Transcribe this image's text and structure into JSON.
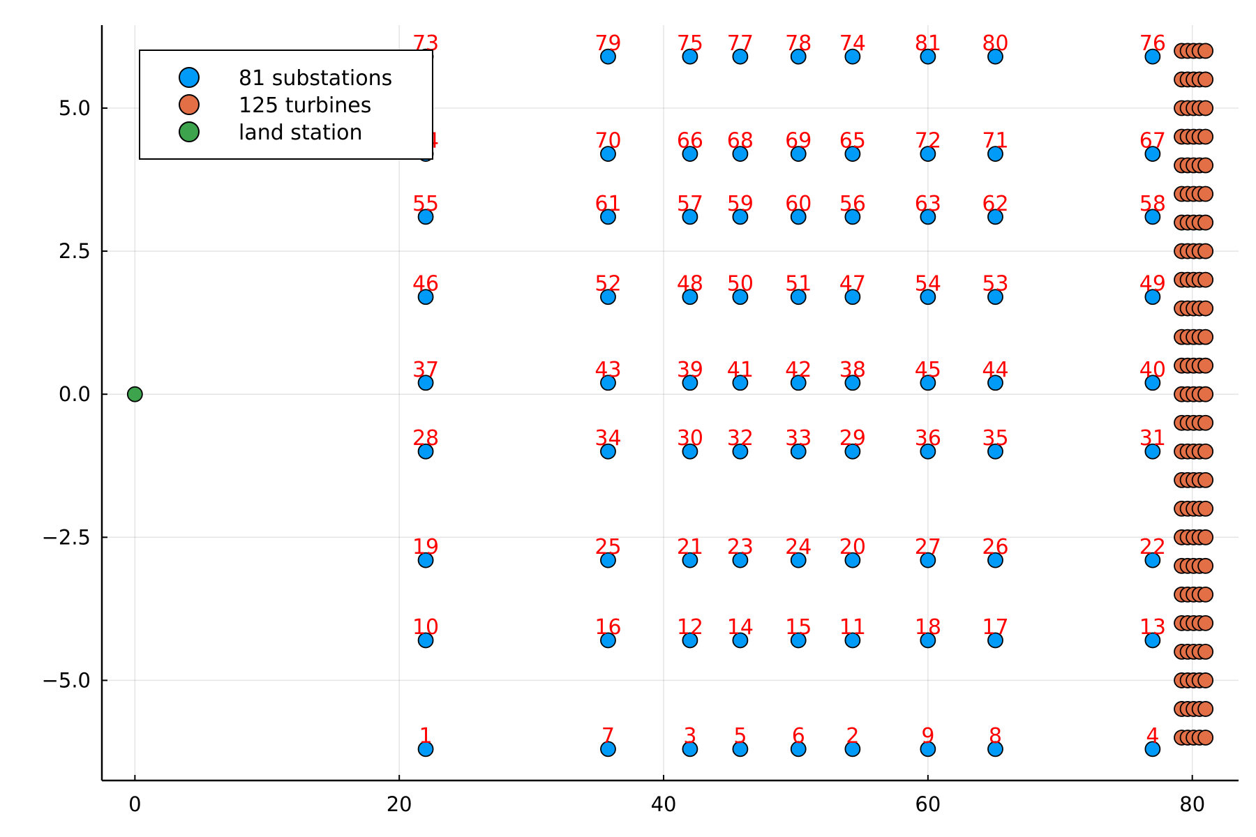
{
  "chart_data": {
    "type": "scatter",
    "title": "",
    "xlabel": "",
    "ylabel": "",
    "xlim": [
      -2.5,
      83.5
    ],
    "ylim": [
      -6.75,
      6.45
    ],
    "xticks": [
      0,
      20,
      40,
      60,
      80
    ],
    "xtick_labels": [
      "0",
      "20",
      "40",
      "60",
      "80"
    ],
    "yticks": [
      -5.0,
      -2.5,
      0.0,
      2.5,
      5.0
    ],
    "ytick_labels": [
      "−5.0",
      "−2.5",
      "0.0",
      "2.5",
      "5.0"
    ],
    "grid": true,
    "legend_position": "top-left",
    "label_color": "#ff0000",
    "substation_grid": {
      "columns_x": [
        22.0,
        35.8,
        42.0,
        45.8,
        50.2,
        54.3,
        60.0,
        65.1,
        77.0
      ],
      "rows_y": [
        -6.2,
        -4.3,
        -2.9,
        -1.0,
        0.2,
        1.7,
        3.1,
        4.2,
        5.9
      ],
      "id_order": [
        1,
        7,
        3,
        5,
        6,
        2,
        9,
        8,
        4,
        10,
        16,
        12,
        14,
        15,
        11,
        18,
        17,
        13,
        19,
        25,
        21,
        23,
        24,
        20,
        27,
        26,
        22,
        28,
        34,
        30,
        32,
        33,
        29,
        36,
        35,
        31,
        37,
        43,
        39,
        41,
        42,
        38,
        45,
        44,
        40,
        46,
        52,
        48,
        50,
        51,
        47,
        54,
        53,
        49,
        55,
        61,
        57,
        59,
        60,
        56,
        63,
        62,
        58,
        64,
        70,
        66,
        68,
        69,
        65,
        72,
        71,
        67,
        73,
        79,
        75,
        77,
        78,
        74,
        81,
        80,
        76
      ]
    },
    "turbine_grid": {
      "columns_x": [
        79.2,
        79.65,
        80.1,
        80.55,
        81.0
      ],
      "rows_y": [
        -6.0,
        -5.5,
        -5.0,
        -4.5,
        -4.0,
        -3.5,
        -3.0,
        -2.5,
        -2.0,
        -1.5,
        -1.0,
        -0.5,
        0.0,
        0.5,
        1.0,
        1.5,
        2.0,
        2.5,
        3.0,
        3.5,
        4.0,
        4.5,
        5.0,
        5.5,
        6.0
      ]
    },
    "series": [
      {
        "name": "81 substations",
        "color": "#009af9",
        "count": 81
      },
      {
        "name": "125 turbines",
        "color": "#e26f46",
        "count": 125
      },
      {
        "name": "land station",
        "color": "#3da44d",
        "points": [
          [
            0,
            0
          ]
        ]
      }
    ]
  }
}
